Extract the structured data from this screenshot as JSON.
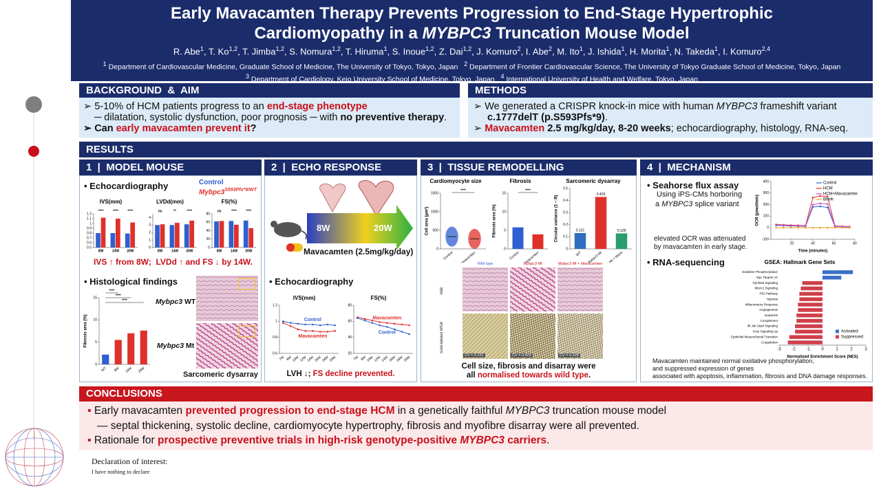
{
  "header": {
    "title_1": "Early Mavacamten Therapy Prevents Progression to End-Stage Hypertrophic",
    "title_2": [
      "Cardiomyopathy in a ",
      "MYBPC3",
      " Truncation Mouse Model"
    ],
    "authors": [
      [
        "R. Abe",
        "1"
      ],
      [
        ", T. Ko",
        "1,2"
      ],
      [
        ", T. Jimba",
        "1,2"
      ],
      [
        ", S. Nomura",
        "1,2"
      ],
      [
        ", T. Hiruma",
        "1"
      ],
      [
        ", S. Inoue",
        "1,2"
      ],
      [
        ", Z. Dai",
        "1,2"
      ],
      [
        ", J. Komuro",
        "2"
      ],
      [
        ", I. Abe",
        "2"
      ],
      [
        ", M. Ito",
        "1"
      ],
      [
        ", J. Ishida",
        "1"
      ],
      [
        ", H. Morita",
        "1"
      ],
      [
        ", N. Takeda",
        "1"
      ],
      [
        ", I. Komuro",
        "2,4"
      ]
    ],
    "affiliations": [
      [
        "1",
        " Department of Cardiovascular Medicine, Graduate School of Medicine, The University of Tokyo, Tokyo, Japan"
      ],
      [
        "2",
        " Department of Frontier Cardiovascular Science, The University of Tokyo Graduate School of Medicine, Tokyo, Japan"
      ],
      [
        "3",
        " Department of Cardiology, Keio University School of Medicine, Tokyo, Japan"
      ],
      [
        "4",
        " International University of Health and Welfare, Tokyo, Japan"
      ]
    ]
  },
  "background": {
    "heading": "BACKGROUND  &  AIM",
    "b1": [
      "5-10% of HCM patients progress to an ",
      "end-stage phenotype"
    ],
    "b2": [
      "─ dilatation, systolic dysfunction, poor prognosis ─ with ",
      "no preventive therapy",
      "."
    ],
    "b3": [
      "Can ",
      "early mavacamten prevent it",
      "?"
    ]
  },
  "methods": {
    "heading": "METHODS",
    "b1": [
      "We generated a CRISPR knock-in mice with human ",
      "MYBPC3",
      " frameshift variant"
    ],
    "b1b": [
      "c.1777delT (p.S593Pfs*9)",
      "."
    ],
    "b2": [
      "Mavacamten",
      " 2.5 mg/kg/day, 8-20 weeks",
      "; echocardiography, histology, RNA-seq."
    ]
  },
  "results_heading": "RESULTS",
  "panel1": {
    "heading": "1  |  MODEL MOUSE",
    "echo_label": "Echocardiography",
    "legend": [
      "Control",
      "Mybpc3",
      "S593Pfs*9/WT"
    ],
    "charts": [
      {
        "type": "bar",
        "title": "IVS(mm)",
        "categories": [
          "8W",
          "14W",
          "20W"
        ],
        "ylim": [
          0.5,
          1.2
        ],
        "yticks": [
          0.5,
          0.6,
          0.7,
          0.8,
          0.9,
          1.0,
          1.1,
          1.2
        ],
        "sig": [
          "****",
          "****",
          "****"
        ],
        "series": [
          {
            "color": "#2f5fd0",
            "values": [
              0.8,
              0.8,
              0.79
            ]
          },
          {
            "color": "#e0302a",
            "values": [
              1.12,
              1.1,
              1.02
            ]
          }
        ]
      },
      {
        "type": "bar",
        "title": "LVDd(mm)",
        "categories": [
          "8W",
          "14W",
          "20W"
        ],
        "ylim": [
          0,
          4.5
        ],
        "yticks": [
          0,
          1,
          2,
          3,
          4
        ],
        "sig": [
          "ns",
          "**",
          "****"
        ],
        "series": [
          {
            "color": "#2f5fd0",
            "values": [
              3.0,
              3.0,
              3.1
            ]
          },
          {
            "color": "#e0302a",
            "values": [
              3.1,
              3.3,
              3.6
            ]
          }
        ]
      },
      {
        "type": "bar",
        "title": "FS(%)",
        "categories": [
          "8W",
          "14W",
          "20W"
        ],
        "ylim": [
          0,
          80
        ],
        "yticks": [
          0,
          20,
          40,
          60,
          80
        ],
        "sig": [
          "ns",
          "****",
          "****"
        ],
        "series": [
          {
            "color": "#2f5fd0",
            "values": [
              62,
              63,
              64
            ]
          },
          {
            "color": "#e0302a",
            "values": [
              63,
              54,
              46
            ]
          }
        ]
      }
    ],
    "caption": "IVS ↑ from 8W;  LVDd ↑ and FS ↓ by 14W.",
    "histology_label": "Histological findings",
    "fibrosis_chart": {
      "type": "bar",
      "ylabel": "Fibrosis area (%)",
      "categories": [
        "WT",
        "8W",
        "14W",
        "20W"
      ],
      "values": [
        2.2,
        5.5,
        7.0,
        7.6
      ],
      "colors": [
        "#2f5fd0",
        "#e0302a",
        "#e0302a",
        "#e0302a"
      ],
      "ylim": [
        0,
        15
      ],
      "yticks": [
        0,
        5,
        10,
        15
      ],
      "sig": [
        "****",
        "****",
        "****"
      ],
      "rotate_categories": true
    },
    "wt_label": [
      "Mybpc3",
      " WT"
    ],
    "mt_label": [
      "Mybpc3",
      " Mt"
    ],
    "image_caption": "Sarcomeric dysarray"
  },
  "panel2": {
    "heading": "2  |  ECHO RESPONSE",
    "arrow_start": "8W",
    "arrow_end": "20W",
    "treatment": "Mavacamten (2.5mg/kg/day)",
    "echo_label": "Echocardiography",
    "charts": [
      {
        "type": "line",
        "title": "IVS(mm)",
        "categories": [
          "7W",
          "8W",
          "10W",
          "12W",
          "14W",
          "16W",
          "18W",
          "20W"
        ],
        "ylim": [
          0.6,
          1.2
        ],
        "yticks": [
          0.6,
          0.8,
          1.0,
          1.2
        ],
        "rotate_categories": true,
        "series": [
          {
            "name": "Control",
            "color": "#2f5fd0",
            "values": [
              1.0,
              0.98,
              0.97,
              0.96,
              0.96,
              0.95,
              0.96,
              0.95
            ]
          },
          {
            "name": "Mavacamten",
            "color": "#e0302a",
            "values": [
              0.98,
              0.94,
              0.9,
              0.88,
              0.88,
              0.87,
              0.87,
              0.88
            ]
          }
        ]
      },
      {
        "type": "line",
        "title": "FS(%)",
        "categories": [
          "7W",
          "8W",
          "10W",
          "12W",
          "14W",
          "16W",
          "18W",
          "20W"
        ],
        "ylim": [
          20,
          80
        ],
        "yticks": [
          20,
          40,
          60,
          80
        ],
        "rotate_categories": true,
        "series": [
          {
            "name": "Mavacamten",
            "color": "#e0302a",
            "values": [
              65,
              63,
              61,
              59,
              58,
              57,
              56,
              55
            ]
          },
          {
            "name": "Control",
            "color": "#2f5fd0",
            "values": [
              64,
              61,
              58,
              55,
              53,
              50,
              47,
              44
            ]
          }
        ]
      }
    ],
    "caption": [
      "LVH ↓; ",
      "FS decline prevented."
    ]
  },
  "panel3": {
    "heading": "3  |  TISSUE REMODELLING",
    "charts": [
      {
        "type": "violin",
        "title": "Cardiomyocyte size",
        "ylabel": "Cell area (μm²)",
        "categories": [
          "Control",
          "Mavacamten"
        ],
        "values": [
          330,
          270
        ],
        "colors": [
          "#2f5fd0",
          "#e0302a"
        ],
        "ylim": [
          0,
          1500
        ],
        "yticks": [
          0,
          500,
          1000,
          1500
        ],
        "sig": [
          "****"
        ],
        "rotate_categories": true
      },
      {
        "type": "bar",
        "title": "Fibrosis",
        "ylabel": "Fibrosis area (%)",
        "categories": [
          "Control",
          "Mavacamten"
        ],
        "values": [
          5.8,
          3.9
        ],
        "colors": [
          "#2f5fd0",
          "#e0302a"
        ],
        "ylim": [
          0,
          15
        ],
        "yticks": [
          0,
          5,
          10,
          15
        ],
        "sig": [
          "****"
        ],
        "rotate_categories": true
      },
      {
        "type": "bar",
        "title": "Sarcomeric dysarray",
        "ylabel": "Circular variance (1 − R)",
        "categories": [
          "WT",
          "Mybpc3 Mt",
          "Mybpc3 Mt + Mava"
        ],
        "values": [
          0.131,
          0.429,
          0.128
        ],
        "show_values": true,
        "colors": [
          "#2f6fc0",
          "#e0302a",
          "#2a9d6e"
        ],
        "ylim": [
          0,
          0.5
        ],
        "yticks": [
          0,
          0.1,
          0.2,
          0.3,
          0.4,
          0.5
        ],
        "rotate_categories": true
      }
    ],
    "columns": [
      "Wild type",
      "Mybpc3 Mt",
      "Mybpc3 Mt + Mavacamten"
    ],
    "rows": [
      "H&E",
      "Gold-labeled WGA"
    ],
    "cv_labels": [
      "CV = 0.131",
      "CV = 0.429",
      "CV = 0.128"
    ],
    "caption": [
      "Cell size, fibrosis and disarray",
      " were",
      "all ",
      "normalised towards wild type",
      "."
    ]
  },
  "panel4": {
    "heading": "4  |  MECHANISM",
    "seahorse_label": "Seahorse flux assay",
    "seahorse_1": "Using iPS-CMs horboring",
    "seahorse_2": [
      "a ",
      "MYBPC3",
      " splice variant"
    ],
    "ocr_chart": {
      "type": "line",
      "xlabel": "Time (minutes)",
      "ylabel": "OCR (pmol/min)",
      "x": [
        5,
        12,
        19,
        26,
        33,
        40,
        47,
        54,
        61,
        68,
        75
      ],
      "xlim": [
        0,
        80
      ],
      "xticks": [
        20,
        40,
        60,
        80
      ],
      "ylim": [
        -100,
        400
      ],
      "yticks": [
        -100,
        0,
        100,
        200,
        300,
        400
      ],
      "legend": "top-right",
      "series": [
        {
          "name": "Control",
          "color": "#2f5fd0",
          "values": [
            20,
            18,
            15,
            14,
            12,
            180,
            185,
            175,
            10,
            8,
            6
          ]
        },
        {
          "name": "HCM",
          "color": "#e0302a",
          "values": [
            28,
            25,
            22,
            20,
            18,
            260,
            275,
            270,
            15,
            12,
            10
          ]
        },
        {
          "name": "HCM+Mavacamten",
          "color": "#c050c0",
          "values": [
            24,
            22,
            18,
            16,
            15,
            200,
            210,
            205,
            12,
            10,
            8
          ]
        },
        {
          "name": "Blank",
          "color": "#f0a020",
          "values": [
            0,
            0,
            0,
            0,
            0,
            0,
            0,
            0,
            0,
            0,
            0
          ]
        }
      ]
    },
    "ocr_note": "elevated OCR was attenuated by mavacamten in early stage.",
    "rnaseq_label": "RNA-sequencing",
    "gsea_chart": {
      "type": "hbar",
      "title": "GSEA: Hallmark Gene Sets",
      "xlabel": "Normalized Enrichment Score (NES)",
      "xlim": [
        -3,
        3
      ],
      "xticks": [
        -3,
        -2,
        -1,
        0,
        1,
        2,
        3
      ],
      "legend": "bottom-right",
      "series": [
        {
          "name": "Activated",
          "color": "#3a6fc8",
          "categories": [
            "Oxidative Phosphorylation",
            "Myc Targets V1"
          ],
          "values": [
            2.1,
            1.3
          ]
        },
        {
          "name": "Suppressed",
          "color": "#d0404a",
          "categories": [
            "Tgf Beta Signaling",
            "Mtorc1 Signaling",
            "P53 Pathway",
            "Hypoxia",
            "Inflammatory Response",
            "Angiogenesis",
            "Apoptosis",
            "Complement",
            "Il6 Jak Stat3 Signaling",
            "Kras Signaling Up",
            "Epithelial Mesenchymal Transition",
            "Coagulation"
          ],
          "values": [
            -1.4,
            -1.5,
            -1.6,
            -1.6,
            -1.7,
            -1.7,
            -1.8,
            -1.8,
            -1.9,
            -1.9,
            -2.3,
            -2.4
          ]
        }
      ]
    },
    "footer": [
      "Mavacamten maintained normal oxidative phosphorylation,",
      "and suppressed expression of genes",
      "associated with apoptosis, inflammation, fibrosis and DNA damage responses."
    ]
  },
  "conclusions": {
    "heading": "CONCLUSIONS",
    "c1": [
      "Early mavacamten ",
      "prevented progression to end-stage HCM",
      " in a genetically faithful ",
      "MYBPC3",
      " truncation mouse model"
    ],
    "c2": "— septal thickening, systolic decline, cardiomyocyte hypertrophy, fibrosis and myofibre disarray were all prevented.",
    "c3": [
      "Rationale for ",
      "prospective preventive trials in high-risk genotype-positive ",
      "MYBPC3",
      " carriers",
      "."
    ]
  },
  "declaration": [
    "Declaration of interest:",
    "I have nothing to declare"
  ]
}
